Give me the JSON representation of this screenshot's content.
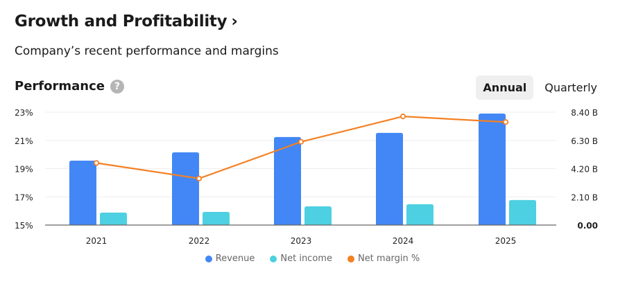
{
  "header": {
    "title": "Growth and Profitability",
    "title_chevron": "›",
    "subtitle": "Company’s recent performance and margins"
  },
  "section": {
    "title": "Performance",
    "help_icon": "?"
  },
  "period_toggle": {
    "options": [
      "Annual",
      "Quarterly"
    ],
    "selected": "Annual"
  },
  "colors": {
    "revenue": "#4287f5",
    "net_income": "#4dd0e1",
    "net_margin": "#f48024",
    "grid": "#eeeeee",
    "axis": "#666666"
  },
  "chart_data": {
    "type": "bar",
    "title": "Performance",
    "categories": [
      "2021",
      "2022",
      "2023",
      "2024",
      "2025"
    ],
    "series": [
      {
        "name": "Revenue",
        "type": "bar",
        "axis": "right",
        "unit": "B",
        "values": [
          4.79,
          5.41,
          6.55,
          6.86,
          8.3
        ]
      },
      {
        "name": "Net income",
        "type": "bar",
        "axis": "right",
        "unit": "B",
        "values": [
          0.93,
          0.98,
          1.39,
          1.55,
          1.86
        ]
      },
      {
        "name": "Net margin %",
        "type": "line",
        "axis": "left",
        "unit": "%",
        "values": [
          19.4,
          18.3,
          20.9,
          22.7,
          22.3
        ]
      }
    ],
    "left_axis": {
      "ticks": [
        "15%",
        "17%",
        "19%",
        "21%",
        "23%"
      ],
      "range": [
        15,
        23
      ]
    },
    "right_axis": {
      "ticks": [
        "0.00",
        "2.10 B",
        "4.20 B",
        "6.30 B",
        "8.40 B"
      ],
      "range": [
        0,
        8.4
      ]
    },
    "grid": true,
    "legend": {
      "position": "bottom-center",
      "entries": [
        "Revenue",
        "Net income",
        "Net margin %"
      ]
    }
  }
}
